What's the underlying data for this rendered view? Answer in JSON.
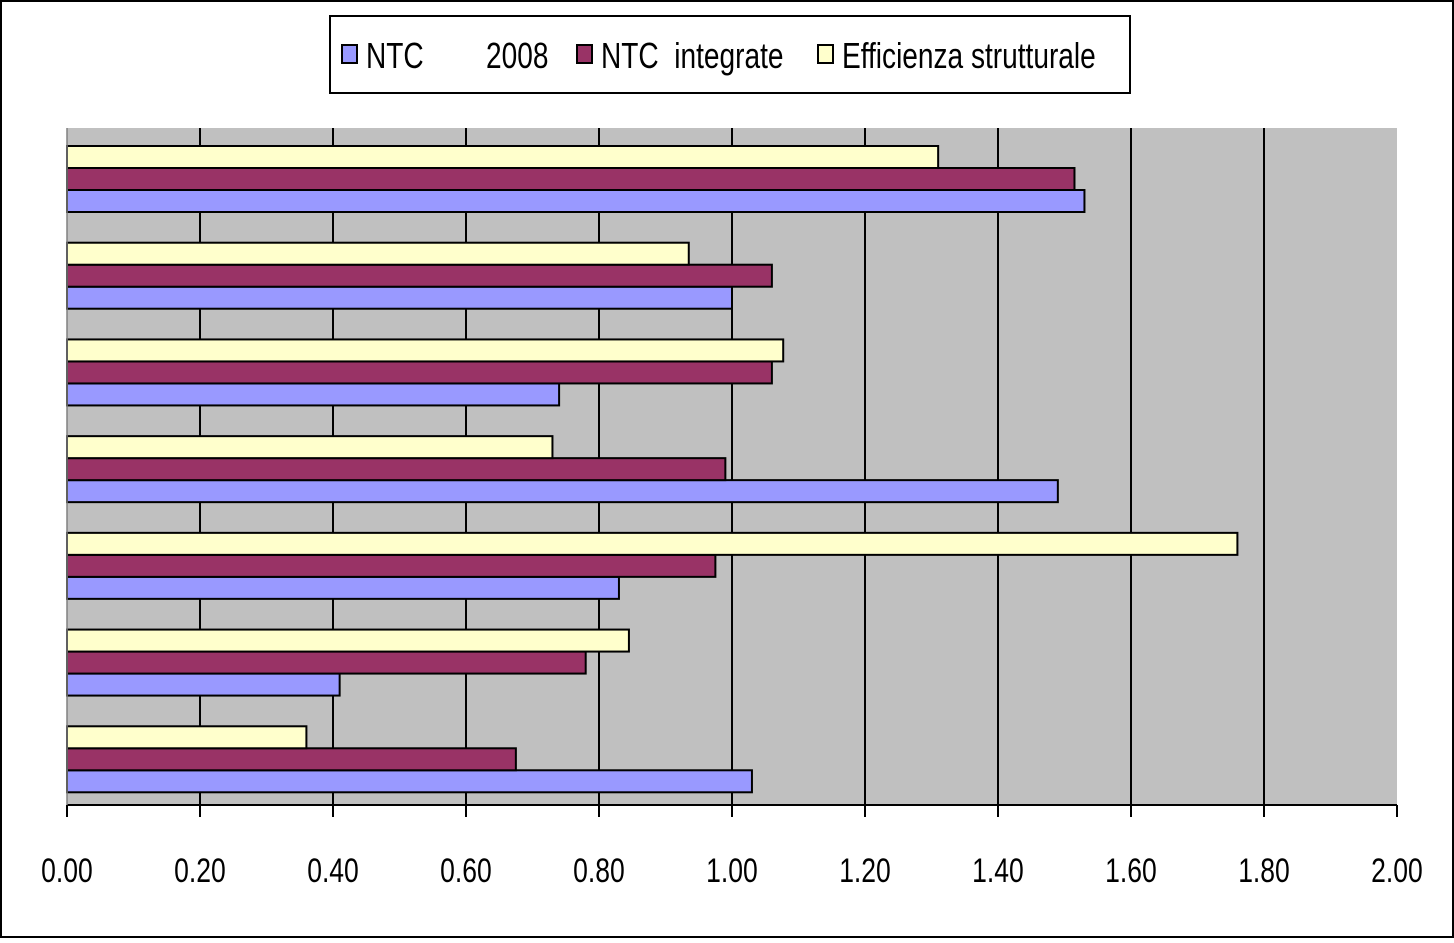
{
  "chart_data": {
    "type": "bar",
    "orientation": "horizontal",
    "title": "",
    "xlabel": "",
    "ylabel": "",
    "xlim": [
      0,
      2
    ],
    "x_ticks": [
      "0.00",
      "0.20",
      "0.40",
      "0.60",
      "0.80",
      "1.00",
      "1.20",
      "1.40",
      "1.60",
      "1.80",
      "2.00"
    ],
    "grid": "vertical",
    "legend_position": "top-center",
    "categories": [
      "",
      "",
      "",
      "",
      "",
      "",
      ""
    ],
    "series": [
      {
        "name": "NTC        2008",
        "color": "#9999ff",
        "values": [
          1.53,
          1.0,
          0.74,
          1.49,
          0.83,
          0.41,
          1.03
        ]
      },
      {
        "name": "NTC  integrate",
        "color": "#993366",
        "values": [
          1.515,
          1.06,
          1.06,
          0.99,
          0.975,
          0.78,
          0.675
        ]
      },
      {
        "name": "Efficienza strutturale",
        "color": "#ffffcc",
        "values": [
          1.31,
          0.935,
          1.077,
          0.73,
          1.76,
          0.845,
          0.36
        ]
      }
    ],
    "colors": {
      "plot_background": "#c0c0c0",
      "grid": "#000000",
      "border": "#000000"
    }
  }
}
